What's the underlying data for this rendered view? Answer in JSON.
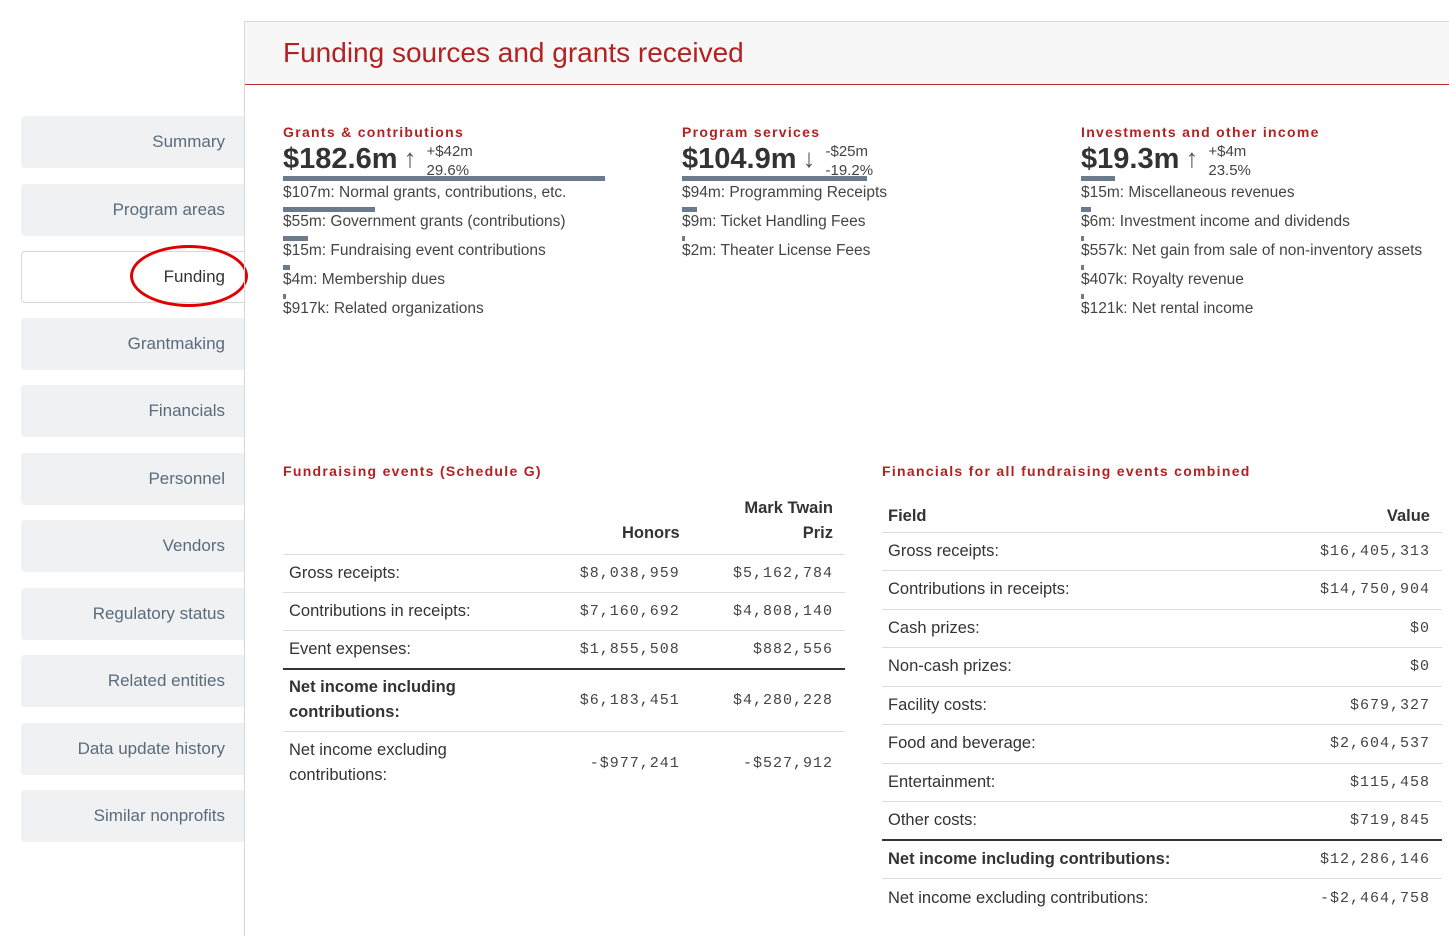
{
  "sidebar": {
    "items": [
      {
        "label": "Summary"
      },
      {
        "label": "Program areas"
      },
      {
        "label": "Funding"
      },
      {
        "label": "Grantmaking"
      },
      {
        "label": "Financials"
      },
      {
        "label": "Personnel"
      },
      {
        "label": "Vendors"
      },
      {
        "label": "Regulatory status"
      },
      {
        "label": "Related entities"
      },
      {
        "label": "Data update history"
      },
      {
        "label": "Similar nonprofits"
      }
    ],
    "active": "Funding"
  },
  "page": {
    "title": "Funding sources and grants received"
  },
  "funding": {
    "grants": {
      "label": "Grants & contributions",
      "amount": "$182.6m",
      "arrow": "↑",
      "change_abs": "+$42m",
      "change_pct": "29.6%",
      "total_bar_fraction": 1.0,
      "items": [
        {
          "text": "$107m: Normal grants, contributions, etc.",
          "fraction": 0.586
        },
        {
          "text": "$55m: Government grants (contributions)",
          "fraction": 0.301
        },
        {
          "text": "$15m: Fundraising event contributions",
          "fraction": 0.082
        },
        {
          "text": "$4m: Membership dues",
          "fraction": 0.022
        },
        {
          "text": "$917k: Related organizations",
          "fraction": 0.005
        }
      ]
    },
    "program": {
      "label": "Program services",
      "amount": "$104.9m",
      "arrow": "↓",
      "change_abs": "-$25m",
      "change_pct": "-19.2%",
      "total_bar_fraction": 0.574,
      "items": [
        {
          "text": "$94m: Programming Receipts",
          "fraction": 0.515
        },
        {
          "text": "$9m: Ticket Handling Fees",
          "fraction": 0.049
        },
        {
          "text": "$2m: Theater License Fees",
          "fraction": 0.011
        }
      ]
    },
    "investments": {
      "label": "Investments and other income",
      "amount": "$19.3m",
      "arrow": "↑",
      "change_abs": "+$4m",
      "change_pct": "23.5%",
      "total_bar_fraction": 0.106,
      "items": [
        {
          "text": "$15m: Miscellaneous revenues",
          "fraction": 0.082
        },
        {
          "text": "$6m: Investment income and dividends",
          "fraction": 0.033
        },
        {
          "text": "$557k: Net gain from sale of non-inventory assets",
          "fraction": 0.003
        },
        {
          "text": "$407k: Royalty revenue",
          "fraction": 0.002
        },
        {
          "text": "$121k: Net rental income",
          "fraction": 0.001
        }
      ]
    }
  },
  "events": {
    "label": "Fundraising events (Schedule G)",
    "columns": [
      "",
      "Honors",
      "Mark Twain Priz"
    ],
    "rows": [
      {
        "field": "Gross receipts:",
        "honors": "$8,038,959",
        "twain": "$5,162,784"
      },
      {
        "field": "Contributions in receipts:",
        "honors": "$7,160,692",
        "twain": "$4,808,140"
      },
      {
        "field": "Event expenses:",
        "honors": "$1,855,508",
        "twain": "$882,556"
      },
      {
        "field": "Net income including contributions:",
        "honors": "$6,183,451",
        "twain": "$4,280,228"
      },
      {
        "field": "Net income excluding contributions:",
        "honors": "-$977,241",
        "twain": "-$527,912"
      }
    ]
  },
  "combined": {
    "label": "Financials for all fundraising events combined",
    "columns": [
      "Field",
      "Value"
    ],
    "rows": [
      {
        "field": "Gross receipts:",
        "value": "$16,405,313"
      },
      {
        "field": "Contributions in receipts:",
        "value": "$14,750,904"
      },
      {
        "field": "Cash prizes:",
        "value": "$0"
      },
      {
        "field": "Non-cash prizes:",
        "value": "$0"
      },
      {
        "field": "Facility costs:",
        "value": "$679,327"
      },
      {
        "field": "Food and beverage:",
        "value": "$2,604,537"
      },
      {
        "field": "Entertainment:",
        "value": "$115,458"
      },
      {
        "field": "Other costs:",
        "value": "$719,845"
      },
      {
        "field": "Net income including contributions:",
        "value": "$12,286,146"
      },
      {
        "field": "Net income excluding contributions:",
        "value": "-$2,464,758"
      }
    ]
  }
}
